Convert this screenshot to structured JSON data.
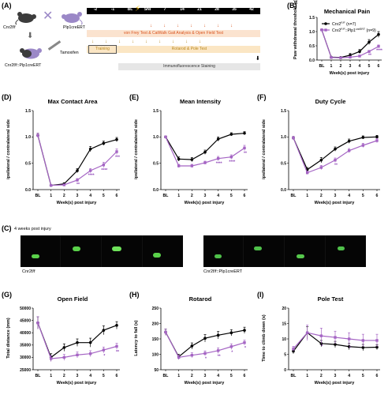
{
  "panel_a": {
    "label": "(A)",
    "mouse1": "Cnr2f/f",
    "mouse2": "Plp1creERT",
    "tamoxifen": "Tamoxifen",
    "mouse3": "Cnr2f/f::Plp1creERT",
    "timeline_ticks": [
      "-2",
      "-1",
      "BL",
      "SNI",
      "7",
      "14",
      "21",
      "28",
      "35",
      "42"
    ],
    "row1": "von Frey Test & CatWalk Gait Analysis & Open Field Test",
    "training": "Training",
    "row2": "Rotarod & Pole Test",
    "row3": "Immunofluorescence Staining",
    "colors": {
      "timeline_bar": "#000000",
      "row1_fill": "#fbe3cf",
      "row2_fill": "#fbe6c4",
      "row3_fill": "#e6e6e6",
      "arrow_orange": "#d9541e",
      "arrow_gold": "#b8861a",
      "mouse_grey": "#3c3c3c",
      "mouse_purple": "#9b88c7"
    }
  },
  "photo_panel": {
    "label": "(C)",
    "title": "4 weeks post injury",
    "caption_left": "Cnr2f/f",
    "caption_right": "Cnr2f/f::Plp1creERT"
  },
  "legend": {
    "s1": "Cnr2",
    "s1_sup": "F/F",
    "s1_n": "(n=7)",
    "s2": "Cnr2",
    "s2_sup": "F/F",
    "s2_mid": "::Plp1",
    "s2_sup2": "creERT",
    "s2_n": "(n=9)"
  },
  "colors": {
    "control": "#000000",
    "cko": "#a565c4",
    "star": "#8a3fb5"
  },
  "chart_data": [
    {
      "id": "B",
      "type": "line",
      "label": "(B)",
      "title": "Mechanical Pain",
      "xlabel": "Week(s) post injury",
      "ylabel": "Paw withdrawal threshold (g)",
      "categories": [
        "BL",
        "1",
        "2",
        "3",
        "4",
        "5",
        "6"
      ],
      "ylim": [
        0,
        1.5
      ],
      "yticks": [
        "0.0",
        "0.5",
        "1.0",
        "1.5"
      ],
      "series": [
        {
          "values": [
            1.06,
            0.1,
            0.09,
            0.17,
            0.3,
            0.63,
            0.9
          ],
          "err": [
            0.04,
            0.01,
            0.02,
            0.06,
            0.07,
            0.09,
            0.1
          ]
        },
        {
          "values": [
            1.06,
            0.09,
            0.08,
            0.1,
            0.14,
            0.3,
            0.48
          ],
          "err": [
            0.04,
            0.01,
            0.01,
            0.02,
            0.03,
            0.04,
            0.05
          ]
        }
      ],
      "stars": [
        "",
        "",
        "",
        "",
        "",
        "**",
        "****"
      ]
    },
    {
      "id": "D",
      "type": "line",
      "label": "(D)",
      "title": "Max Contact Area",
      "xlabel": "Week(s) post injury",
      "ylabel": "ipsilateral / contralateral side",
      "categories": [
        "BL",
        "1",
        "2",
        "3",
        "4",
        "5",
        "6"
      ],
      "ylim": [
        0,
        1.5
      ],
      "yticks": [
        "0.0",
        "0.5",
        "1.0",
        "1.5"
      ],
      "series": [
        {
          "values": [
            1.03,
            0.08,
            0.11,
            0.36,
            0.77,
            0.88,
            0.95
          ],
          "err": [
            0.04,
            0.01,
            0.02,
            0.04,
            0.05,
            0.04,
            0.04
          ]
        },
        {
          "values": [
            1.03,
            0.08,
            0.09,
            0.18,
            0.36,
            0.47,
            0.72
          ],
          "err": [
            0.04,
            0.01,
            0.01,
            0.03,
            0.04,
            0.05,
            0.05
          ]
        }
      ],
      "stars": [
        "",
        "",
        "",
        "**",
        "****",
        "****",
        "***"
      ]
    },
    {
      "id": "E",
      "type": "line",
      "label": "(E)",
      "title": "Mean Intensity",
      "xlabel": "Week(s) post injury",
      "ylabel": "ipsilateral / contralateral side",
      "categories": [
        "BL",
        "1",
        "2",
        "3",
        "4",
        "5",
        "6"
      ],
      "ylim": [
        0,
        1.5
      ],
      "yticks": [
        "0.0",
        "0.5",
        "1.0",
        "1.5"
      ],
      "series": [
        {
          "values": [
            1.0,
            0.58,
            0.57,
            0.71,
            0.96,
            1.05,
            1.07
          ],
          "err": [
            0.02,
            0.04,
            0.04,
            0.04,
            0.04,
            0.03,
            0.03
          ]
        },
        {
          "values": [
            1.0,
            0.45,
            0.45,
            0.51,
            0.59,
            0.62,
            0.79
          ],
          "err": [
            0.02,
            0.03,
            0.03,
            0.03,
            0.04,
            0.04,
            0.05
          ]
        }
      ],
      "stars": [
        "",
        "",
        "",
        "",
        "****",
        "****",
        "**"
      ]
    },
    {
      "id": "F",
      "type": "line",
      "label": "(F)",
      "title": "Duty Cycle",
      "xlabel": "Week(s) post injury",
      "ylabel": "ipsilateral / contralateral side",
      "categories": [
        "BL",
        "1",
        "2",
        "3",
        "4",
        "5",
        "6"
      ],
      "ylim": [
        0,
        1.5
      ],
      "yticks": [
        "0.0",
        "0.5",
        "1.0",
        "1.5"
      ],
      "series": [
        {
          "values": [
            0.98,
            0.38,
            0.56,
            0.77,
            0.92,
            0.99,
            1.0
          ],
          "err": [
            0.03,
            0.04,
            0.05,
            0.04,
            0.04,
            0.03,
            0.03
          ]
        },
        {
          "values": [
            0.98,
            0.32,
            0.42,
            0.56,
            0.74,
            0.84,
            0.93
          ],
          "err": [
            0.03,
            0.03,
            0.04,
            0.04,
            0.04,
            0.04,
            0.04
          ]
        }
      ],
      "stars": [
        "",
        "",
        "",
        "**",
        "",
        "",
        ""
      ]
    },
    {
      "id": "G",
      "type": "line",
      "label": "(G)",
      "title": "Open Field",
      "xlabel": "Week(s) post injury",
      "ylabel": "Total distance (mm)",
      "categories": [
        "BL",
        "1",
        "2",
        "3",
        "4",
        "5",
        "6"
      ],
      "ylim": [
        25000,
        50000
      ],
      "yticks": [
        "25000",
        "30000",
        "35000",
        "40000",
        "45000",
        "50000"
      ],
      "series": [
        {
          "values": [
            44000,
            30000,
            34000,
            36000,
            36000,
            41000,
            43000
          ],
          "err": [
            2500,
            1500,
            1500,
            1500,
            1800,
            1800,
            1500
          ]
        },
        {
          "values": [
            44000,
            29500,
            30000,
            31000,
            31500,
            33000,
            34500
          ],
          "err": [
            2500,
            1200,
            1200,
            1200,
            1200,
            1200,
            1200
          ]
        }
      ],
      "stars": [
        "",
        "",
        "",
        "",
        "",
        "*",
        "**"
      ]
    },
    {
      "id": "H",
      "type": "line",
      "label": "(H)",
      "title": "Rotarod",
      "xlabel": "Week(s) post injury",
      "ylabel": "Latency to fall (s)",
      "categories": [
        "BL",
        "1",
        "2",
        "3",
        "4",
        "5",
        "6"
      ],
      "ylim": [
        50,
        250
      ],
      "yticks": [
        "50",
        "100",
        "150",
        "200",
        "250"
      ],
      "series": [
        {
          "values": [
            172,
            92,
            127,
            152,
            162,
            170,
            178
          ],
          "err": [
            10,
            8,
            10,
            12,
            12,
            10,
            10
          ]
        },
        {
          "values": [
            172,
            90,
            97,
            103,
            112,
            125,
            138
          ],
          "err": [
            10,
            7,
            8,
            8,
            9,
            9,
            8
          ]
        }
      ],
      "stars": [
        "",
        "",
        "",
        "*",
        "**",
        "*",
        "*"
      ]
    },
    {
      "id": "I",
      "type": "line",
      "label": "(I)",
      "title": "Pole Test",
      "xlabel": "Week(s) post injury",
      "ylabel": "Time to climb down (s)",
      "categories": [
        "BL",
        "1",
        "2",
        "3",
        "4",
        "5",
        "6"
      ],
      "ylim": [
        0,
        20
      ],
      "yticks": [
        "0",
        "5",
        "10",
        "15",
        "20"
      ],
      "series": [
        {
          "values": [
            6.0,
            12.0,
            8.5,
            8.2,
            7.5,
            7.2,
            7.3
          ],
          "err": [
            0.8,
            2.0,
            1.0,
            1.0,
            1.0,
            1.0,
            0.8
          ]
        },
        {
          "values": [
            6.8,
            12.0,
            11.0,
            10.5,
            10.0,
            9.5,
            9.5
          ],
          "err": [
            0.8,
            2.5,
            2.5,
            2.0,
            2.0,
            2.0,
            2.0
          ]
        }
      ],
      "stars": [
        "",
        "",
        "*",
        "",
        "*",
        "",
        ""
      ]
    }
  ]
}
